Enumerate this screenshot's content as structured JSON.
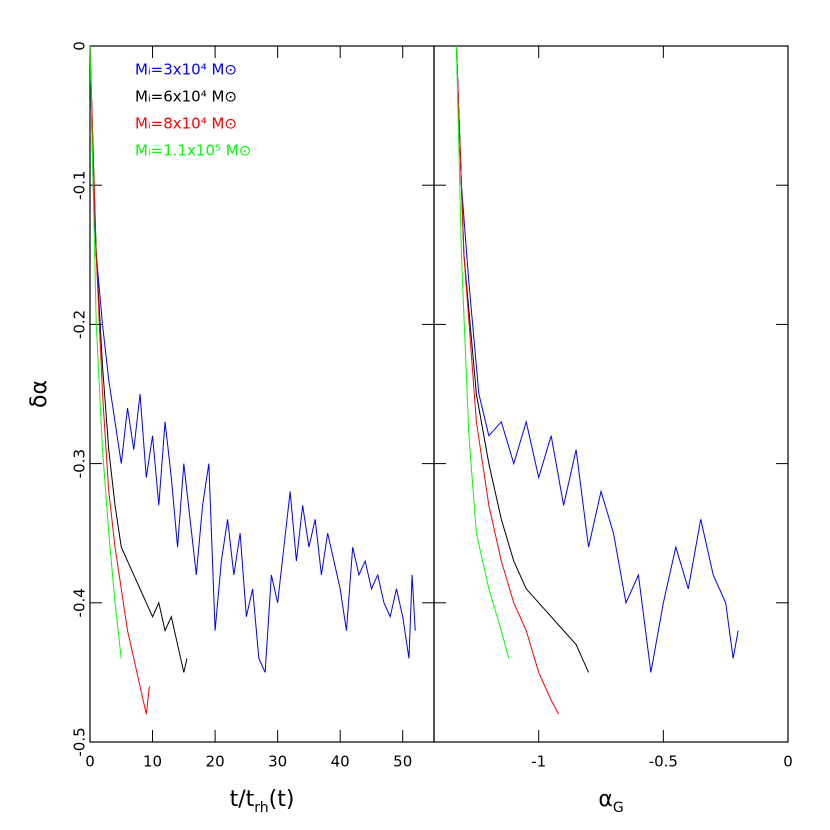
{
  "chart_data": [
    {
      "type": "line",
      "xlabel_parts": [
        "t/t",
        "rh",
        "(t)"
      ],
      "ylabel": "δα",
      "xlim": [
        0,
        55
      ],
      "ylim": [
        -0.5,
        0
      ],
      "xticks": [
        0,
        10,
        20,
        30,
        40,
        50
      ],
      "yticks": [
        -0.5,
        -0.4,
        -0.3,
        -0.2,
        -0.1,
        0
      ],
      "legend": "upper left",
      "series": [
        {
          "name": "Mᵢ=3x10⁴ M⊙",
          "color": "#0000ff",
          "x": [
            0,
            0.5,
            1,
            2,
            3,
            4,
            5,
            6,
            7,
            8,
            9,
            10,
            11,
            12,
            13,
            14,
            15,
            16,
            17,
            18,
            19,
            20,
            21,
            22,
            23,
            24,
            25,
            26,
            27,
            28,
            29,
            30,
            31,
            32,
            33,
            34,
            35,
            36,
            37,
            38,
            39,
            40,
            41,
            42,
            43,
            44,
            45,
            46,
            47,
            48,
            49,
            50,
            51,
            51.5,
            52
          ],
          "values": [
            0,
            -0.1,
            -0.15,
            -0.2,
            -0.24,
            -0.27,
            -0.3,
            -0.26,
            -0.29,
            -0.25,
            -0.31,
            -0.28,
            -0.33,
            -0.27,
            -0.31,
            -0.36,
            -0.3,
            -0.34,
            -0.38,
            -0.33,
            -0.3,
            -0.42,
            -0.37,
            -0.34,
            -0.38,
            -0.35,
            -0.41,
            -0.39,
            -0.44,
            -0.45,
            -0.38,
            -0.4,
            -0.36,
            -0.32,
            -0.37,
            -0.33,
            -0.36,
            -0.34,
            -0.38,
            -0.35,
            -0.37,
            -0.39,
            -0.42,
            -0.36,
            -0.38,
            -0.37,
            -0.39,
            -0.38,
            -0.4,
            -0.41,
            -0.39,
            -0.41,
            -0.44,
            -0.38,
            -0.42
          ]
        },
        {
          "name": "Mᵢ=6x10⁴ M⊙",
          "color": "#000000",
          "x": [
            0,
            1,
            2,
            3,
            4,
            5,
            6,
            7,
            8,
            9,
            10,
            11,
            12,
            13,
            14,
            15,
            15.5
          ],
          "values": [
            0,
            -0.15,
            -0.23,
            -0.29,
            -0.33,
            -0.36,
            -0.37,
            -0.38,
            -0.39,
            -0.4,
            -0.41,
            -0.4,
            -0.42,
            -0.41,
            -0.43,
            -0.45,
            -0.44
          ]
        },
        {
          "name": "Mᵢ=8x10⁴ M⊙",
          "color": "#ff0000",
          "x": [
            0,
            1,
            2,
            3,
            4,
            5,
            6,
            7,
            8,
            9,
            9.5
          ],
          "values": [
            0,
            -0.15,
            -0.25,
            -0.32,
            -0.36,
            -0.39,
            -0.42,
            -0.44,
            -0.46,
            -0.48,
            -0.46
          ]
        },
        {
          "name": "Mᵢ=1.1x10⁵ M⊙",
          "color": "#00ff00",
          "x": [
            0,
            0.5,
            1,
            2,
            3,
            4,
            4.5,
            5
          ],
          "values": [
            0,
            -0.1,
            -0.2,
            -0.29,
            -0.35,
            -0.4,
            -0.42,
            -0.44
          ]
        }
      ]
    },
    {
      "type": "line",
      "xlabel_parts": [
        "α",
        "G"
      ],
      "xlim": [
        -1.42,
        0
      ],
      "ylim": [
        -0.5,
        0
      ],
      "xticks": [
        -1,
        -0.5,
        0
      ],
      "series": [
        {
          "color": "#0000ff",
          "x": [
            -1.33,
            -1.31,
            -1.28,
            -1.26,
            -1.24,
            -1.2,
            -1.15,
            -1.1,
            -1.05,
            -1.0,
            -0.95,
            -0.9,
            -0.85,
            -0.8,
            -0.75,
            -0.7,
            -0.65,
            -0.6,
            -0.55,
            -0.5,
            -0.45,
            -0.4,
            -0.35,
            -0.3,
            -0.25,
            -0.22,
            -0.2
          ],
          "values": [
            0,
            -0.1,
            -0.17,
            -0.21,
            -0.25,
            -0.28,
            -0.27,
            -0.3,
            -0.27,
            -0.31,
            -0.28,
            -0.33,
            -0.29,
            -0.36,
            -0.32,
            -0.35,
            -0.4,
            -0.38,
            -0.45,
            -0.4,
            -0.36,
            -0.39,
            -0.34,
            -0.38,
            -0.4,
            -0.44,
            -0.42
          ]
        },
        {
          "color": "#000000",
          "x": [
            -1.33,
            -1.3,
            -1.25,
            -1.2,
            -1.15,
            -1.1,
            -1.05,
            -1.0,
            -0.95,
            -0.9,
            -0.85,
            -0.8
          ],
          "values": [
            0,
            -0.15,
            -0.25,
            -0.3,
            -0.34,
            -0.37,
            -0.39,
            -0.4,
            -0.41,
            -0.42,
            -0.43,
            -0.45
          ]
        },
        {
          "color": "#ff0000",
          "x": [
            -1.33,
            -1.3,
            -1.25,
            -1.2,
            -1.15,
            -1.1,
            -1.05,
            -1.0,
            -0.95,
            -0.92
          ],
          "values": [
            0,
            -0.15,
            -0.27,
            -0.33,
            -0.37,
            -0.4,
            -0.42,
            -0.45,
            -0.47,
            -0.48
          ]
        },
        {
          "color": "#00ff00",
          "x": [
            -1.33,
            -1.31,
            -1.28,
            -1.25,
            -1.2,
            -1.15,
            -1.12
          ],
          "values": [
            0,
            -0.15,
            -0.28,
            -0.35,
            -0.39,
            -0.42,
            -0.44
          ]
        }
      ]
    }
  ]
}
